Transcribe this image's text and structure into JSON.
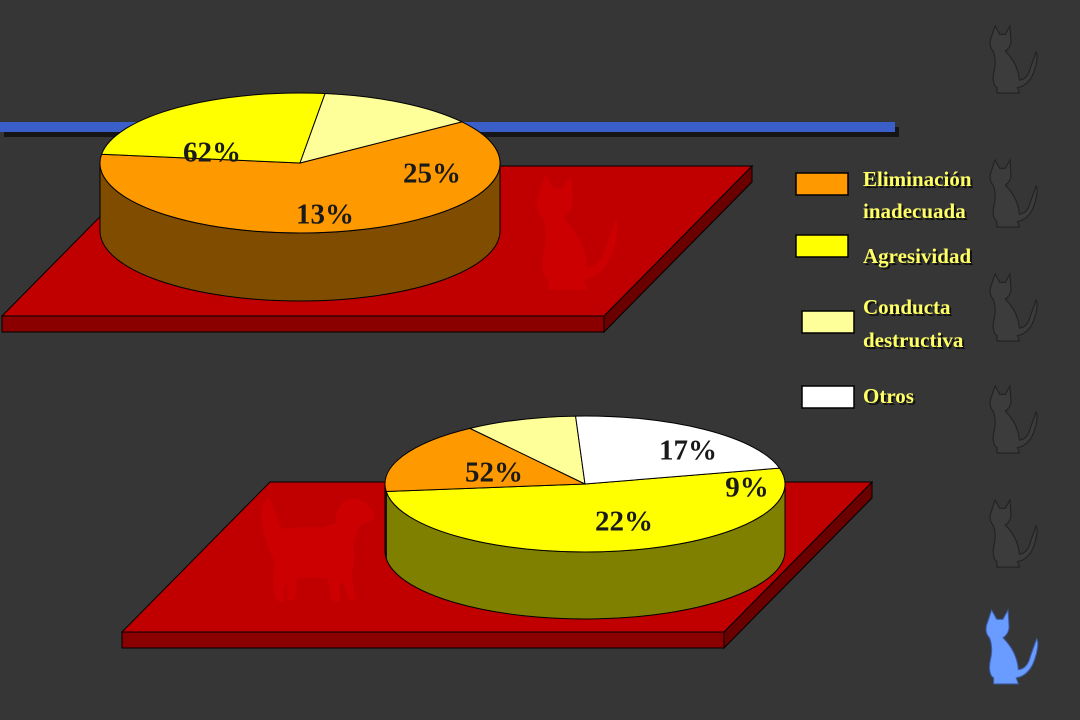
{
  "colors": {
    "background": "#363636",
    "platform_top": "#c00000",
    "platform_side": "#8a0000",
    "band": "#3a5fc8",
    "silhouette_red": "#cc0000",
    "cat_blue": "#6a9cff",
    "legend_text": "#ffff66"
  },
  "legend": [
    {
      "lines": [
        "Eliminación",
        "inadecuada"
      ],
      "color": "#ff9900"
    },
    {
      "lines": [
        "Agresividad"
      ],
      "color": "#ffff00"
    },
    {
      "lines": [
        "Conducta",
        "destructiva"
      ],
      "color": "#ffff99"
    },
    {
      "lines": [
        "Otros"
      ],
      "color": "#ffffff"
    }
  ],
  "chart_data": [
    {
      "type": "pie",
      "subject_icon": "cat-silhouette",
      "slices": [
        {
          "category": "Eliminación inadecuada",
          "value": 62,
          "label": "62%",
          "color": "#ff9900"
        },
        {
          "category": "Agresividad",
          "value": 25,
          "label": "25%",
          "color": "#ffff00"
        },
        {
          "category": "Conducta destructiva",
          "value": 13,
          "label": "13%",
          "color": "#ffff99"
        }
      ]
    },
    {
      "type": "pie",
      "subject_icon": "dog-silhouette",
      "slices": [
        {
          "category": "Agresividad",
          "value": 52,
          "label": "52%",
          "color": "#ffff00"
        },
        {
          "category": "Eliminación inadecuada",
          "value": 17,
          "label": "17%",
          "color": "#ff9900"
        },
        {
          "category": "Conducta destructiva",
          "value": 9,
          "label": "9%",
          "color": "#ffff99"
        },
        {
          "category": "Otros",
          "value": 22,
          "label": "22%",
          "color": "#ffffff"
        }
      ]
    }
  ]
}
